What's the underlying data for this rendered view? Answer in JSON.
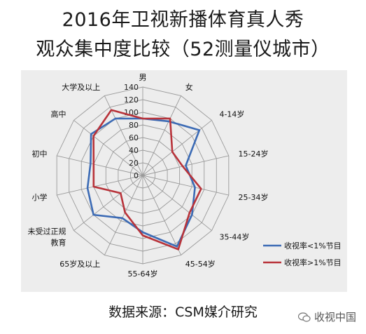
{
  "title_line1": "2016年卫视新播体育真人秀",
  "title_line2": "观众集中度比较（52测量仪城市）",
  "source_text": "数据来源：CSM媒介研究",
  "watermark": "收视中国",
  "colors": {
    "series1": "#3c6bb5",
    "series2": "#b8333a",
    "grid": "#9a9a9a",
    "background": "#ededed"
  },
  "chart_data": {
    "type": "radar",
    "categories": [
      "男",
      "女",
      "4-14岁",
      "15-24岁",
      "25-34岁",
      "35-44岁",
      "45-54岁",
      "55-64岁",
      "65岁及以上",
      "未受过正规\n教育",
      "小学",
      "初中",
      "高中",
      "大学及以上"
    ],
    "radial_ticks": [
      0,
      20,
      40,
      60,
      80,
      100,
      120,
      140
    ],
    "rlim": [
      0,
      140
    ],
    "legend_position": "bottom-right",
    "series": [
      {
        "name": "收视率<1%节目",
        "values": [
          90,
          95,
          115,
          70,
          85,
          100,
          125,
          90,
          75,
          100,
          90,
          85,
          105,
          100
        ]
      },
      {
        "name": "收视率>1%节目",
        "values": [
          90,
          100,
          60,
          65,
          95,
          95,
          130,
          95,
          65,
          45,
          80,
          80,
          100,
          115
        ]
      }
    ]
  }
}
